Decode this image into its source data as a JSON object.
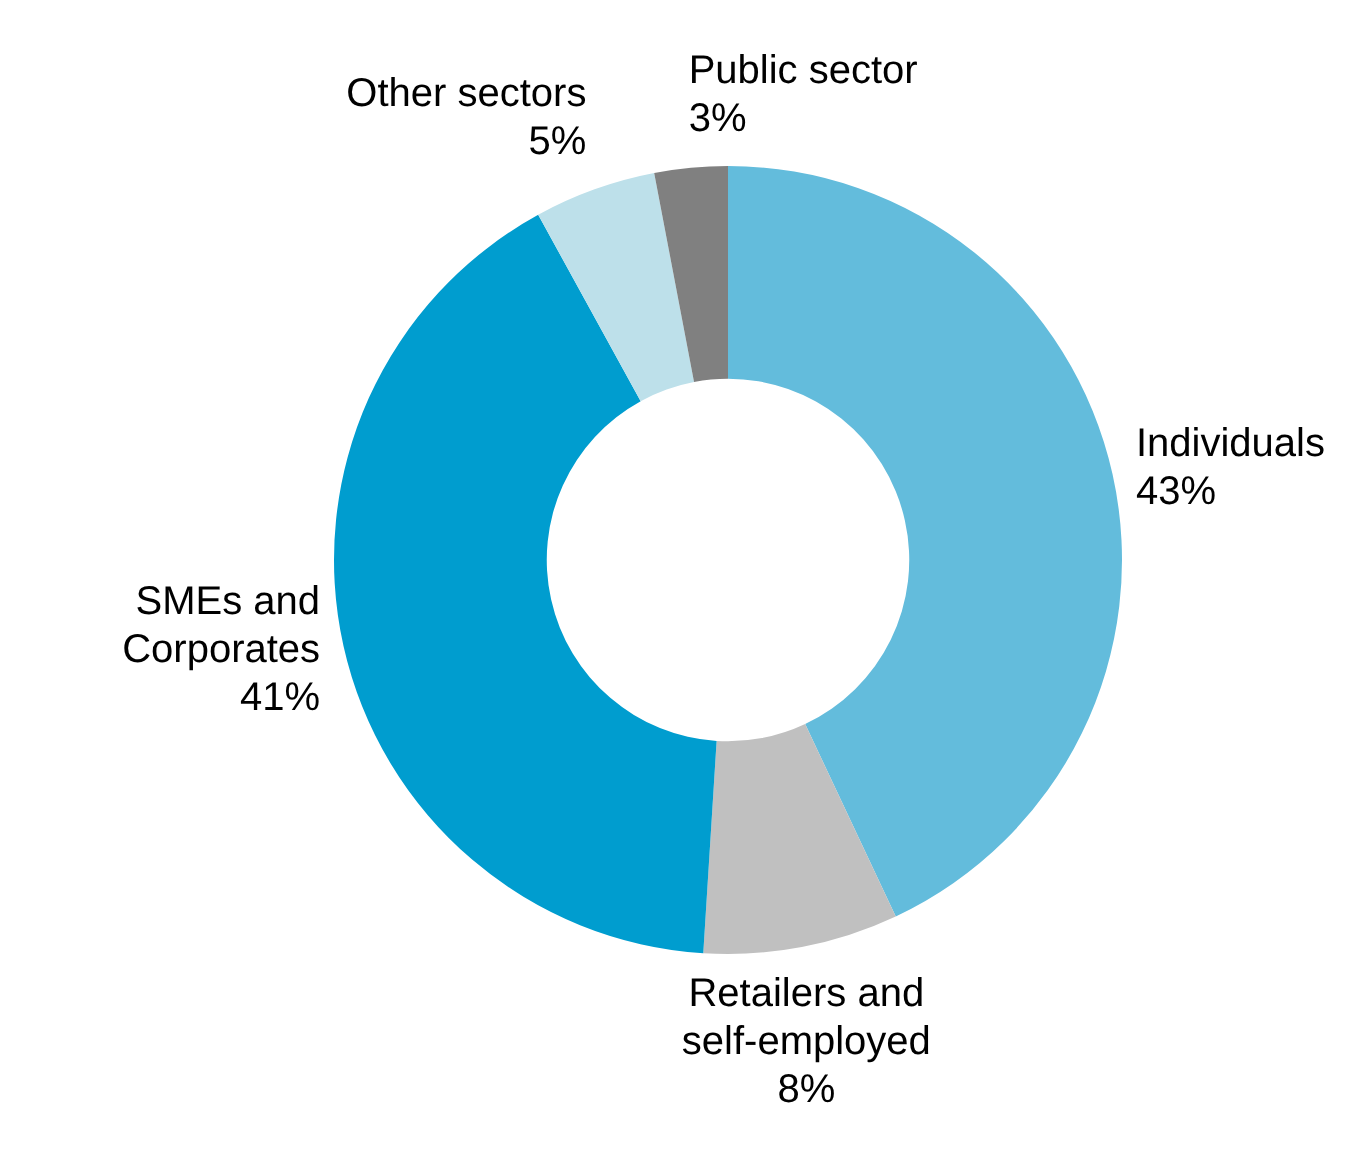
{
  "chart_data": {
    "type": "donut",
    "categories": [
      "Individuals",
      "Retailers and self-employed",
      "SMEs and Corporates",
      "Other sectors",
      "Public sector"
    ],
    "values": [
      43,
      8,
      41,
      5,
      3
    ],
    "value_labels": [
      "43%",
      "8%",
      "41%",
      "5%",
      "3%"
    ],
    "colors": [
      "#63bcdc",
      "#c0c0c0",
      "#009dcf",
      "#bde0ea",
      "#808080"
    ],
    "legend": false
  }
}
